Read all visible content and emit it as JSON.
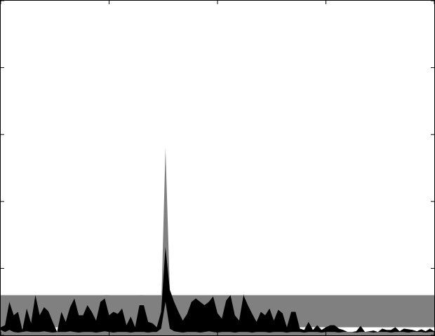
{
  "chart_data": {
    "type": "area",
    "title": "",
    "xlabel": "",
    "ylabel": "",
    "xlim": [
      0,
      100
    ],
    "ylim": [
      0,
      5
    ],
    "x_ticks": [
      0,
      25,
      50,
      75,
      100
    ],
    "y_ticks": [
      0,
      1,
      2,
      3,
      4,
      5
    ],
    "tick_labels_visible": false,
    "grid": false,
    "legend": "none",
    "band": {
      "lower": 0.12,
      "upper": 0.6,
      "color": "#808080"
    },
    "colors": {
      "upper_envelope": "#808080",
      "series": "#000000",
      "lower_envelope": "#808080",
      "band": "#808080"
    },
    "x": [
      0,
      1,
      2,
      3,
      4,
      5,
      6,
      7,
      8,
      9,
      10,
      11,
      12,
      13,
      14,
      15,
      16,
      17,
      18,
      19,
      20,
      21,
      22,
      23,
      24,
      25,
      26,
      27,
      28,
      29,
      30,
      31,
      32,
      33,
      34,
      35,
      36,
      37,
      38,
      39,
      40,
      41,
      42,
      43,
      44,
      45,
      46,
      47,
      48,
      49,
      50,
      51,
      52,
      53,
      54,
      55,
      56,
      57,
      58,
      59,
      60,
      61,
      62,
      63,
      64,
      65,
      66,
      67,
      68,
      69,
      70,
      71,
      72,
      73,
      74,
      75,
      76,
      77,
      78,
      79,
      80,
      81,
      82,
      83,
      84,
      85,
      86,
      87,
      88,
      89,
      90,
      91,
      92,
      93,
      94,
      95,
      96,
      97,
      98,
      99,
      100
    ],
    "series": [
      {
        "values": [
          0.12,
          0.15,
          0.5,
          0.3,
          0.35,
          0.08,
          0.4,
          0.18,
          0.6,
          0.3,
          0.42,
          0.36,
          0.2,
          0.05,
          0.35,
          0.2,
          0.42,
          0.55,
          0.3,
          0.3,
          0.45,
          0.35,
          0.22,
          0.5,
          0.55,
          0.3,
          0.35,
          0.32,
          0.4,
          0.15,
          0.28,
          0.12,
          0.45,
          0.45,
          0.2,
          0.18,
          0.12,
          0.35,
          1.32,
          0.68,
          0.5,
          0.35,
          0.22,
          0.32,
          0.5,
          0.55,
          0.5,
          0.45,
          0.5,
          0.58,
          0.33,
          0.25,
          0.52,
          0.6,
          0.3,
          0.22,
          0.6,
          0.45,
          0.32,
          0.2,
          0.35,
          0.3,
          0.4,
          0.22,
          0.38,
          0.33,
          0.12,
          0.35,
          0.35,
          0.1,
          0.08,
          0.2,
          0.08,
          0.15,
          0.08,
          0.12,
          0.15,
          0.15,
          0.1,
          0.08,
          0.05,
          0.05,
          0.06,
          0.14,
          0.05,
          0.06,
          0.07,
          0.05,
          0.1,
          0.08,
          0.08,
          0.12,
          0.06,
          0.1,
          0.09,
          0.08,
          0.06,
          0.09,
          0.06,
          0.1,
          0.06
        ]
      },
      {
        "values": [
          0.1,
          0.12,
          0.55,
          0.35,
          0.4,
          0.1,
          0.4,
          0.15,
          0.6,
          0.3,
          0.45,
          0.38,
          0.2,
          0.05,
          0.35,
          0.2,
          0.42,
          0.55,
          0.3,
          0.3,
          0.5,
          0.38,
          0.22,
          0.55,
          0.6,
          0.6,
          0.35,
          0.32,
          0.4,
          0.15,
          0.28,
          0.12,
          0.6,
          0.6,
          0.2,
          0.18,
          0.12,
          0.35,
          2.8,
          0.68,
          0.5,
          0.35,
          0.22,
          0.32,
          0.5,
          0.55,
          0.5,
          0.45,
          0.5,
          0.58,
          0.33,
          0.25,
          0.52,
          0.6,
          0.3,
          0.22,
          0.62,
          0.45,
          0.32,
          0.2,
          0.35,
          0.3,
          0.4,
          0.22,
          0.38,
          0.35,
          0.12,
          0.35,
          0.35,
          0.1,
          0.08,
          0.2,
          0.08,
          0.15,
          0.08,
          0.12,
          0.15,
          0.15,
          0.1,
          0.08,
          0.05,
          0.05,
          0.06,
          0.14,
          0.05,
          0.06,
          0.07,
          0.05,
          0.1,
          0.08,
          0.08,
          0.12,
          0.06,
          0.1,
          0.09,
          0.08,
          0.06,
          0.09,
          0.06,
          0.1,
          0.06
        ]
      },
      {
        "values": [
          0.08,
          0.05,
          0.08,
          0.05,
          0.04,
          0.05,
          0.06,
          0.05,
          0.05,
          0.05,
          0.06,
          0.05,
          0.04,
          0.05,
          0.05,
          0.05,
          0.06,
          0.05,
          0.04,
          0.05,
          0.05,
          0.05,
          0.04,
          0.05,
          0.06,
          0.05,
          0.04,
          0.05,
          0.05,
          0.05,
          0.04,
          0.05,
          0.05,
          0.05,
          0.04,
          0.05,
          0.05,
          0.1,
          0.5,
          0.1,
          0.06,
          0.05,
          0.04,
          0.05,
          0.05,
          0.05,
          0.04,
          0.05,
          0.06,
          0.05,
          0.04,
          0.05,
          0.05,
          0.05,
          0.04,
          0.05,
          0.05,
          0.05,
          0.04,
          0.05,
          0.05,
          0.05,
          0.04,
          0.05,
          0.05,
          0.05,
          0.04,
          0.05,
          0.05,
          0.05,
          0.04,
          0.05,
          0.05,
          0.05,
          0.04,
          0.05,
          0.05,
          0.05,
          0.04,
          0.05,
          0.05,
          0.05,
          0.04,
          0.05,
          0.05,
          0.05,
          0.04,
          0.05,
          0.05,
          0.05,
          0.04,
          0.05,
          0.05,
          0.05,
          0.04,
          0.05,
          0.05,
          0.05,
          0.04,
          0.05,
          0.05
        ]
      }
    ]
  }
}
